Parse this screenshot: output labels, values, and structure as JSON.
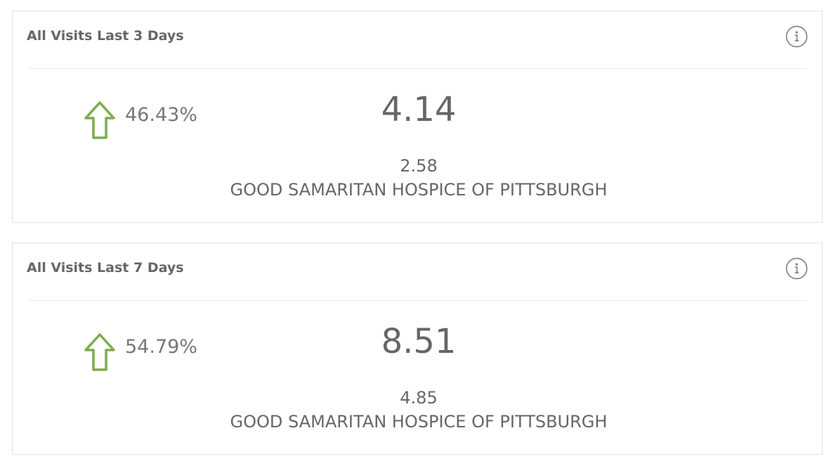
{
  "cards": [
    {
      "title": "All Visits Last 3 Days",
      "change": "46.43%",
      "value": "4.14",
      "comparison": "2.58",
      "organization": "GOOD SAMARITAN HOSPICE OF PITTSBURGH"
    },
    {
      "title": "All Visits Last 7 Days",
      "change": "54.79%",
      "value": "8.51",
      "comparison": "4.85",
      "organization": "GOOD SAMARITAN HOSPICE OF PITTSBURGH"
    }
  ]
}
